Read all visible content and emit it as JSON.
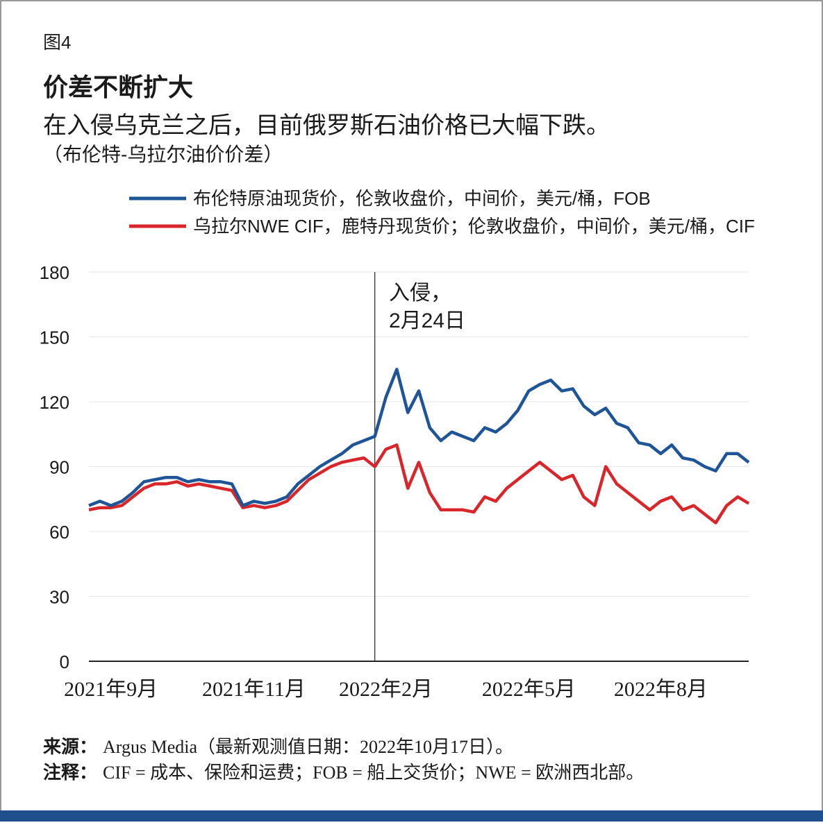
{
  "figure_label": "图4",
  "source_label": "来源：",
  "source_text": "Argus Media（最新观测值日期：2022年10月17日）。",
  "note_label": "注释：",
  "note_text": "CIF = 成本、保险和运费；FOB = 船上交货价；NWE = 欧洲西北部。",
  "chart_data": {
    "type": "line",
    "title": "价差不断扩大",
    "subtitle": "在入侵乌克兰之后，目前俄罗斯石油价格已大幅下跌。",
    "y_label": "（布伦特-乌拉尔油价价差）",
    "annotation": [
      "入侵，",
      "2月24日"
    ],
    "categories": [
      null,
      null,
      "2021年9月",
      null,
      null,
      null,
      null,
      null,
      null,
      null,
      null,
      null,
      null,
      null,
      null,
      "2021年11月",
      null,
      null,
      null,
      null,
      null,
      null,
      null,
      null,
      null,
      null,
      null,
      "2022年2月",
      null,
      null,
      null,
      null,
      null,
      null,
      null,
      null,
      null,
      null,
      null,
      null,
      "2022年5月",
      null,
      null,
      null,
      null,
      null,
      null,
      null,
      null,
      null,
      null,
      null,
      "2022年8月",
      null,
      null,
      null,
      null,
      null,
      null,
      null,
      null
    ],
    "series": [
      {
        "name": "布伦特原油现货价，伦敦收盘价，中间价，美元/桶，FOB",
        "color": "#1f5596",
        "values": [
          72,
          74,
          72,
          74,
          78,
          83,
          84,
          85,
          85,
          83,
          84,
          83,
          83,
          82,
          72,
          74,
          73,
          74,
          76,
          82,
          86,
          90,
          93,
          96,
          100,
          102,
          104,
          122,
          135,
          115,
          125,
          108,
          102,
          106,
          104,
          102,
          108,
          106,
          110,
          116,
          125,
          128,
          130,
          125,
          126,
          118,
          114,
          117,
          110,
          108,
          101,
          100,
          96,
          100,
          94,
          93,
          90,
          88,
          96,
          96,
          92
        ]
      },
      {
        "name": "乌拉尔NWE CIF，鹿特丹现货价；伦敦收盘价，中间价，美元/桶，CIF",
        "color": "#d9262a",
        "values": [
          70,
          71,
          71,
          72,
          76,
          80,
          82,
          82,
          83,
          81,
          82,
          81,
          80,
          79,
          71,
          72,
          71,
          72,
          74,
          79,
          84,
          87,
          90,
          92,
          93,
          94,
          90,
          98,
          100,
          80,
          92,
          78,
          70,
          70,
          70,
          69,
          76,
          74,
          80,
          84,
          88,
          92,
          88,
          84,
          86,
          76,
          72,
          90,
          82,
          78,
          74,
          70,
          74,
          76,
          70,
          72,
          68,
          64,
          72,
          76,
          73
        ]
      }
    ],
    "ylim": [
      0,
      180
    ],
    "yticks": [
      0,
      30,
      60,
      90,
      120,
      150,
      180
    ],
    "grid": true
  }
}
